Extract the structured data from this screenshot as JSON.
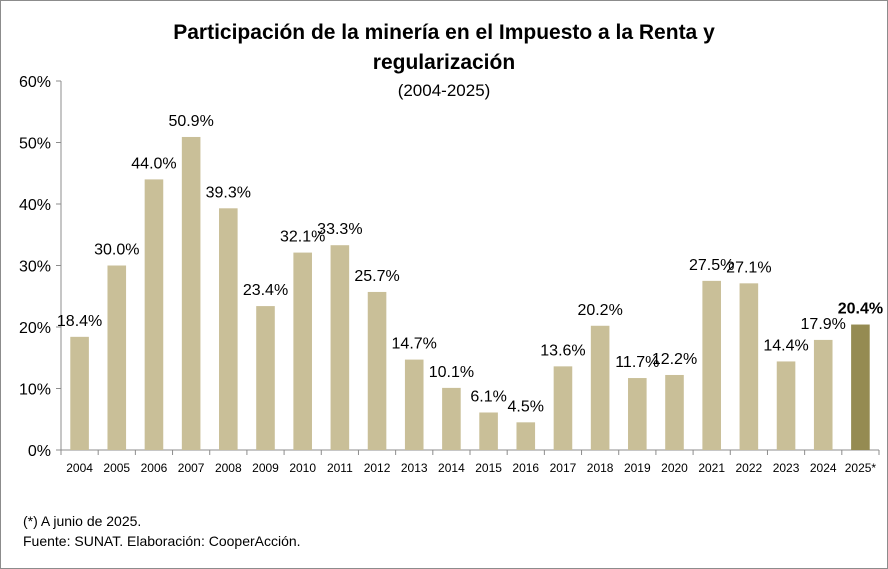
{
  "chart_data": {
    "type": "bar",
    "title": "Participación de la minería en el Impuesto a la Renta y regularización",
    "title_line1": "Participación de la minería en el Impuesto a la Renta y",
    "title_line2": "regularización",
    "subtitle": "(2004-2025)",
    "categories": [
      "2004",
      "2005",
      "2006",
      "2007",
      "2008",
      "2009",
      "2010",
      "2011",
      "2012",
      "2013",
      "2014",
      "2015",
      "2016",
      "2017",
      "2018",
      "2019",
      "2020",
      "2021",
      "2022",
      "2023",
      "2024",
      "2025*"
    ],
    "values": [
      18.4,
      30.0,
      44.0,
      50.9,
      39.3,
      23.4,
      32.1,
      33.3,
      25.7,
      14.7,
      10.1,
      6.1,
      4.5,
      13.6,
      20.2,
      11.7,
      12.2,
      27.5,
      27.1,
      14.4,
      17.9,
      20.4
    ],
    "data_labels": [
      "18.4%",
      "30.0%",
      "44.0%",
      "50.9%",
      "39.3%",
      "23.4%",
      "32.1%",
      "33.3%",
      "25.7%",
      "14.7%",
      "10.1%",
      "6.1%",
      "4.5%",
      "13.6%",
      "20.2%",
      "11.7%",
      "12.2%",
      "27.5%",
      "27.1%",
      "14.4%",
      "17.9%",
      "20.4%"
    ],
    "highlight_index": 21,
    "ylim": [
      0,
      60
    ],
    "yticks": [
      "0%",
      "10%",
      "20%",
      "30%",
      "40%",
      "50%",
      "60%"
    ],
    "xlabel": "",
    "ylabel": "",
    "grid": false,
    "colors": {
      "bar": "#c9bf98",
      "highlight": "#958b52",
      "axis": "#8c8c8c"
    }
  },
  "notes": {
    "footnote": "(*) A junio de 2025.",
    "source": "Fuente: SUNAT. Elaboración: CooperAcción."
  }
}
